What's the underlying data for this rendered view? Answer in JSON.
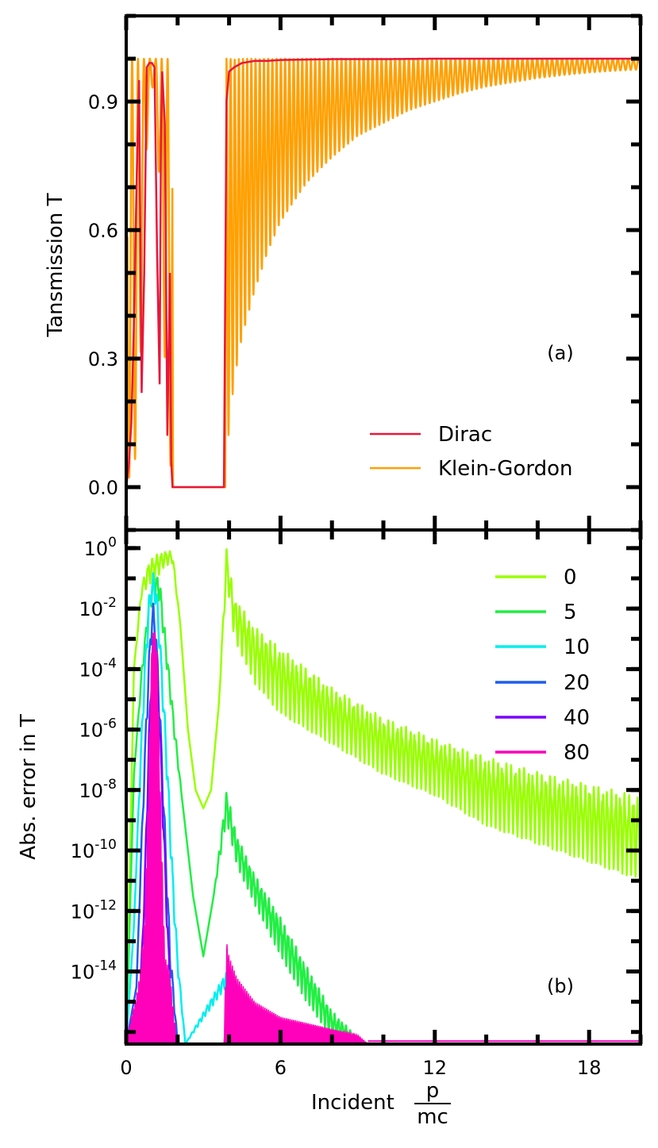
{
  "chart_data": [
    {
      "panel_label": "(a)",
      "type": "line",
      "ylabel": "Tansmission T",
      "xlim": [
        0,
        20
      ],
      "ylim": [
        -0.1,
        1.1
      ],
      "x_ticks": [
        "0",
        "6",
        "12",
        "18"
      ],
      "y_ticks": [
        {
          "v": 0.0,
          "label": "0.0"
        },
        {
          "v": 0.3,
          "label": "0.3"
        },
        {
          "v": 0.6,
          "label": "0.6"
        },
        {
          "v": 0.9,
          "label": "0.9"
        }
      ],
      "legend_position": "lower-right",
      "series": [
        {
          "name": "Dirac",
          "color": "#e8163c",
          "x": [
            0,
            0.1,
            0.2,
            0.3,
            0.4,
            0.5,
            0.6,
            0.7,
            0.8,
            0.9,
            1.0,
            1.1,
            1.2,
            1.3,
            1.35,
            1.4,
            1.5,
            1.6,
            1.7,
            1.75,
            1.8,
            2.0,
            2.5,
            3.0,
            3.5,
            3.8,
            3.9,
            4.0,
            4.2,
            4.5,
            5.0,
            5.5,
            6.0,
            7.0,
            8.0,
            10.0,
            12.0,
            14.0,
            16.0,
            18.0,
            20.0
          ],
          "y": [
            0.0,
            0.05,
            0.15,
            0.38,
            0.7,
            0.95,
            0.22,
            0.5,
            0.98,
            0.99,
            0.99,
            0.98,
            0.55,
            0.24,
            0.8,
            0.97,
            0.85,
            0.12,
            0.5,
            0.06,
            0.0,
            0.0,
            0.0,
            0.0,
            0.0,
            0.0,
            0.9,
            0.97,
            0.98,
            0.99,
            0.995,
            0.995,
            0.997,
            0.998,
            0.999,
            0.999,
            1.0,
            1.0,
            1.0,
            1.0,
            1.0
          ]
        },
        {
          "name": "Klein-Gordon",
          "color": "#ffa000",
          "envelope_min": {
            "x": [
              3.9,
              4.0,
              4.2,
              4.5,
              5.0,
              5.5,
              6.0,
              7.0,
              8.0,
              9.0,
              10.0,
              11.0,
              12.0,
              13.0,
              14.0,
              15.0,
              16.0,
              17.0,
              18.0,
              19.0,
              20.0
            ],
            "y": [
              0.05,
              0.14,
              0.25,
              0.35,
              0.46,
              0.55,
              0.62,
              0.71,
              0.77,
              0.82,
              0.85,
              0.88,
              0.9,
              0.92,
              0.935,
              0.945,
              0.955,
              0.962,
              0.968,
              0.972,
              0.975
            ]
          },
          "low_p_min": {
            "x": [
              0.1,
              0.3,
              0.5,
              0.7,
              0.9,
              1.1,
              1.3,
              1.5,
              1.7
            ],
            "y": [
              0.02,
              0.05,
              0.12,
              0.68,
              0.9,
              0.95,
              0.7,
              0.3,
              0.05
            ]
          }
        }
      ]
    },
    {
      "panel_label": "(b)",
      "type": "line",
      "ylabel": "Abs. error in T",
      "xlabel_text": "Incident",
      "xlabel_frac_num": "p",
      "xlabel_frac_den": "mc",
      "yscale": "log",
      "xlim": [
        0,
        20
      ],
      "ylim_exp": [
        -16.4,
        0.6
      ],
      "x_ticks": [
        "0",
        "6",
        "12",
        "18"
      ],
      "y_ticks": [
        {
          "exp": 0,
          "base": "10",
          "sup": "0"
        },
        {
          "exp": -2,
          "base": "10",
          "sup": "-2"
        },
        {
          "exp": -4,
          "base": "10",
          "sup": "-4"
        },
        {
          "exp": -6,
          "base": "10",
          "sup": "-6"
        },
        {
          "exp": -8,
          "base": "10",
          "sup": "-8"
        },
        {
          "exp": -10,
          "base": "10",
          "sup": "-10"
        },
        {
          "exp": -12,
          "base": "10",
          "sup": "-12"
        },
        {
          "exp": -14,
          "base": "10",
          "sup": "-14"
        }
      ],
      "legend_position": "upper-right",
      "series": [
        {
          "name": "0",
          "color": "#99ff00",
          "x": [
            0,
            0.3,
            0.6,
            0.9,
            1.2,
            1.5,
            1.8,
            2.1,
            2.4,
            2.7,
            3.0,
            3.3,
            3.6,
            3.9,
            4.2,
            5.0,
            6.0,
            8.0,
            10.0,
            12.0,
            14.0,
            16.0,
            18.0,
            20.0
          ],
          "log_upper": [
            -16.4,
            -4.0,
            -1.2,
            -0.4,
            -0.2,
            -0.1,
            -0.1,
            -2.5,
            -6.0,
            -8.0,
            -8.6,
            -8.0,
            -5.2,
            0.0,
            -1.6,
            -2.6,
            -3.3,
            -4.6,
            -5.6,
            -6.3,
            -6.9,
            -7.4,
            -7.8,
            -8.2
          ],
          "log_lower": [
            -16.4,
            -4.0,
            -1.6,
            -1.2,
            -1.0,
            -0.6,
            -0.5,
            -2.5,
            -6.0,
            -8.0,
            -8.6,
            -8.0,
            -5.2,
            -1.0,
            -3.0,
            -4.5,
            -5.5,
            -6.5,
            -7.5,
            -8.2,
            -9.2,
            -9.8,
            -10.4,
            -11.0
          ]
        },
        {
          "name": "5",
          "color": "#22ee44",
          "x": [
            0,
            0.3,
            0.6,
            0.9,
            1.1,
            1.3,
            1.6,
            1.9,
            2.2,
            2.6,
            3.0,
            3.4,
            3.9,
            4.3,
            5.0,
            6.0,
            7.0,
            8.0,
            8.8,
            9.3
          ],
          "log_upper": [
            -16.4,
            -7.5,
            -4.0,
            -1.5,
            -0.8,
            -1.0,
            -3.5,
            -6.0,
            -8.5,
            -11.5,
            -13.5,
            -11.5,
            -8.0,
            -9.5,
            -10.8,
            -12.2,
            -13.8,
            -15.3,
            -16.0,
            -16.4
          ],
          "log_lower": [
            -16.4,
            -7.5,
            -4.4,
            -2.2,
            -1.5,
            -1.8,
            -4.2,
            -6.5,
            -8.5,
            -11.5,
            -13.5,
            -11.5,
            -9.0,
            -10.5,
            -11.8,
            -13.5,
            -15.0,
            -16.2,
            -16.4,
            -16.4
          ]
        },
        {
          "name": "10",
          "color": "#00eeee",
          "x": [
            0,
            0.3,
            0.5,
            0.7,
            0.9,
            1.05,
            1.2,
            1.4,
            1.6,
            1.8,
            2.0,
            2.3,
            3.9,
            4.5,
            5.5,
            6.5
          ],
          "log_upper": [
            -16.4,
            -12.5,
            -8.0,
            -4.0,
            -1.5,
            -0.8,
            -1.5,
            -4.0,
            -7.0,
            -10.5,
            -13.5,
            -16.4,
            -14.0,
            -14.9,
            -15.6,
            -16.4
          ],
          "log_lower": [
            -16.4,
            -12.5,
            -8.5,
            -5.0,
            -2.2,
            -1.5,
            -2.2,
            -5.0,
            -8.0,
            -11.5,
            -14.0,
            -16.4,
            -14.5,
            -15.5,
            -16.2,
            -16.4
          ]
        },
        {
          "name": "20",
          "color": "#1e5cf0",
          "x": [
            0,
            0.4,
            0.6,
            0.8,
            0.95,
            1.05,
            1.15,
            1.3,
            1.5,
            1.7,
            2.0
          ],
          "log_upper": [
            -16.4,
            -14.5,
            -9.5,
            -5.0,
            -2.5,
            -1.8,
            -2.5,
            -5.0,
            -9.0,
            -13.0,
            -16.4
          ],
          "log_lower": [
            -16.4,
            -14.5,
            -10.0,
            -6.0,
            -3.4,
            -2.6,
            -3.4,
            -6.0,
            -10.0,
            -14.0,
            -16.4
          ]
        },
        {
          "name": "40",
          "color": "#7a00ff",
          "x": [
            0,
            0.5,
            0.7,
            0.85,
            1.0,
            1.1,
            1.2,
            1.35,
            1.55,
            1.8
          ],
          "log_upper": [
            -16.4,
            -15.5,
            -11.5,
            -7.0,
            -3.2,
            -2.8,
            -3.5,
            -6.5,
            -11.0,
            -16.4
          ],
          "log_lower": [
            -16.4,
            -15.5,
            -12.0,
            -8.0,
            -4.2,
            -3.8,
            -4.5,
            -7.5,
            -12.0,
            -16.4
          ]
        },
        {
          "name": "80",
          "color": "#ff00bb",
          "x": [
            0,
            0.2,
            0.4,
            0.55,
            0.7,
            0.85,
            1.0,
            1.1,
            1.2,
            1.35,
            1.5,
            1.7,
            1.8,
            1.9,
            2.0,
            3.7,
            3.8,
            3.9,
            4.0,
            4.3,
            5.0,
            6.0,
            7.0,
            8.0,
            9.0,
            9.4
          ],
          "log_upper": [
            -16.4,
            -15.5,
            -14.8,
            -14.0,
            -12.5,
            -8.5,
            -3.0,
            -2.6,
            -3.5,
            -9.0,
            -13.5,
            -14.0,
            -15.0,
            -15.8,
            -16.4,
            -16.4,
            -16.4,
            -13.0,
            -13.5,
            -14.2,
            -15.0,
            -15.5,
            -15.7,
            -15.9,
            -16.1,
            -16.4
          ],
          "log_lower": [
            -16.4,
            -16.4,
            -16.4,
            -16.4,
            -15.5,
            -11.0,
            -4.5,
            -4.0,
            -5.0,
            -11.0,
            -16.0,
            -16.4,
            -16.4,
            -16.4,
            -16.4,
            -16.4,
            -16.4,
            -16.0,
            -16.4,
            -16.4,
            -16.4,
            -16.4,
            -16.4,
            -16.4,
            -16.4,
            -16.4
          ]
        }
      ]
    }
  ]
}
